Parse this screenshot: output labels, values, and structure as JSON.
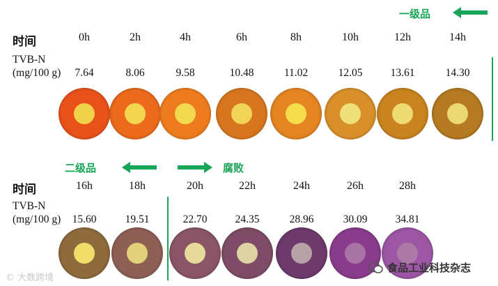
{
  "row1": {
    "label_time": "时间",
    "label_tvbn_line1": "TVB-N",
    "label_tvbn_line2": "(mg/100 g)",
    "grade_label": "一级品",
    "hours": [
      "0h",
      "2h",
      "4h",
      "6h",
      "8h",
      "10h",
      "12h",
      "14h"
    ],
    "values": [
      "7.64",
      "8.06",
      "9.58",
      "10.48",
      "11.02",
      "12.05",
      "13.61",
      "14.30"
    ],
    "disc_colors": [
      {
        "outer": "#e8521a",
        "inner": "#f0d24a"
      },
      {
        "outer": "#ec6a1c",
        "inner": "#f2d650"
      },
      {
        "outer": "#ee7c1e",
        "inner": "#f2d84e"
      },
      {
        "outer": "#d8761f",
        "inner": "#efd458"
      },
      {
        "outer": "#e48522",
        "inner": "#f4de4a"
      },
      {
        "outer": "#d98f2a",
        "inner": "#f0e07a"
      },
      {
        "outer": "#c9831f",
        "inner": "#eedc72"
      },
      {
        "outer": "#b57a22",
        "inner": "#e9d874"
      }
    ]
  },
  "row2": {
    "label_time": "时间",
    "label_tvbn_line1": "TVB-N",
    "label_tvbn_line2": "(mg/100 g)",
    "grade2_label": "二级品",
    "spoil_label": "腐败",
    "hours": [
      "16h",
      "18h",
      "20h",
      "22h",
      "24h",
      "26h",
      "28h"
    ],
    "values": [
      "15.60",
      "19.51",
      "22.70",
      "24.35",
      "28.96",
      "30.09",
      "34.81"
    ],
    "disc_colors": [
      {
        "outer": "#8f6a3c",
        "inner": "#f0dd6a"
      },
      {
        "outer": "#8e5f55",
        "inner": "#e2d07a"
      },
      {
        "outer": "#8a5566",
        "inner": "#e6db9a"
      },
      {
        "outer": "#7e4c66",
        "inner": "#ddd3a5"
      },
      {
        "outer": "#6e3a6c",
        "inner": "#b7a3a7"
      },
      {
        "outer": "#8a3c8c",
        "inner": "#a874a6"
      },
      {
        "outer": "#9c56a4",
        "inner": "#ad7aa6"
      }
    ]
  },
  "watermark_left": "大数跨境",
  "watermark_right": "食品工业科技杂志",
  "accent_color": "#18a557"
}
